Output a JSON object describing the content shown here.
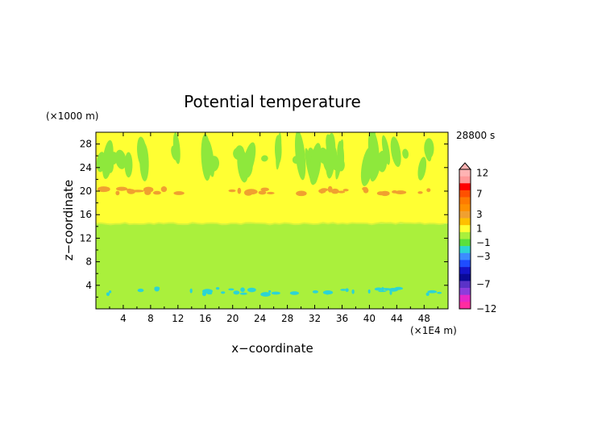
{
  "chart_data": {
    "type": "heatmap",
    "title": "Potential temperature",
    "xlabel": "x−coordinate",
    "ylabel": "z−coordinate",
    "x_unit": "(×1E4 m)",
    "y_unit": "(×1000 m)",
    "time_label": "28800 s",
    "xlim": [
      0,
      51.5
    ],
    "ylim": [
      0,
      30
    ],
    "x_ticks": [
      "4",
      "8",
      "12",
      "16",
      "20",
      "24",
      "28",
      "32",
      "36",
      "40",
      "44",
      "48"
    ],
    "y_ticks": [
      "4",
      "8",
      "12",
      "16",
      "20",
      "24",
      "28"
    ],
    "colorbar": {
      "tick_labels": [
        "12",
        "7",
        "3",
        "1",
        "−1",
        "−3",
        "−7",
        "−12"
      ],
      "segments": [
        {
          "value": 12,
          "color": "#ffb3b3"
        },
        {
          "value": 10,
          "color": "#ff9999"
        },
        {
          "value": 8,
          "color": "#ff0000"
        },
        {
          "value": 7,
          "color": "#ff5000"
        },
        {
          "value": 5,
          "color": "#ff7a00"
        },
        {
          "value": 4,
          "color": "#ff9000"
        },
        {
          "value": 3,
          "color": "#f0a030"
        },
        {
          "value": 2,
          "color": "#ffc000"
        },
        {
          "value": 1,
          "color": "#ffff33"
        },
        {
          "value": 0,
          "color": "#aaf03c"
        },
        {
          "value": -1,
          "color": "#5ae03c"
        },
        {
          "value": -2,
          "color": "#2cd4d4"
        },
        {
          "value": -3,
          "color": "#3c8cff"
        },
        {
          "value": -4,
          "color": "#1e4cff"
        },
        {
          "value": -5,
          "color": "#1414c8"
        },
        {
          "value": -6,
          "color": "#0a0a96"
        },
        {
          "value": -7,
          "color": "#5a32c8"
        },
        {
          "value": -8,
          "color": "#8c3cdc"
        },
        {
          "value": -10,
          "color": "#e628c8"
        },
        {
          "value": -12,
          "color": "#ff2ca0"
        }
      ]
    },
    "layers": [
      {
        "z_min": 0,
        "z_max": 14.5,
        "value": 0,
        "color": "#aaf03c"
      },
      {
        "z_min": 14.5,
        "z_max": 30,
        "value": 1,
        "color": "#ffff33"
      }
    ],
    "features": {
      "upper_green_streaks": {
        "value": 0,
        "color": "#8ee83c"
      },
      "orange_band_z": 20,
      "orange_band_color": "#f0a030",
      "cyan_band_z": 3,
      "cyan_band_color": "#2cd4d4"
    }
  }
}
